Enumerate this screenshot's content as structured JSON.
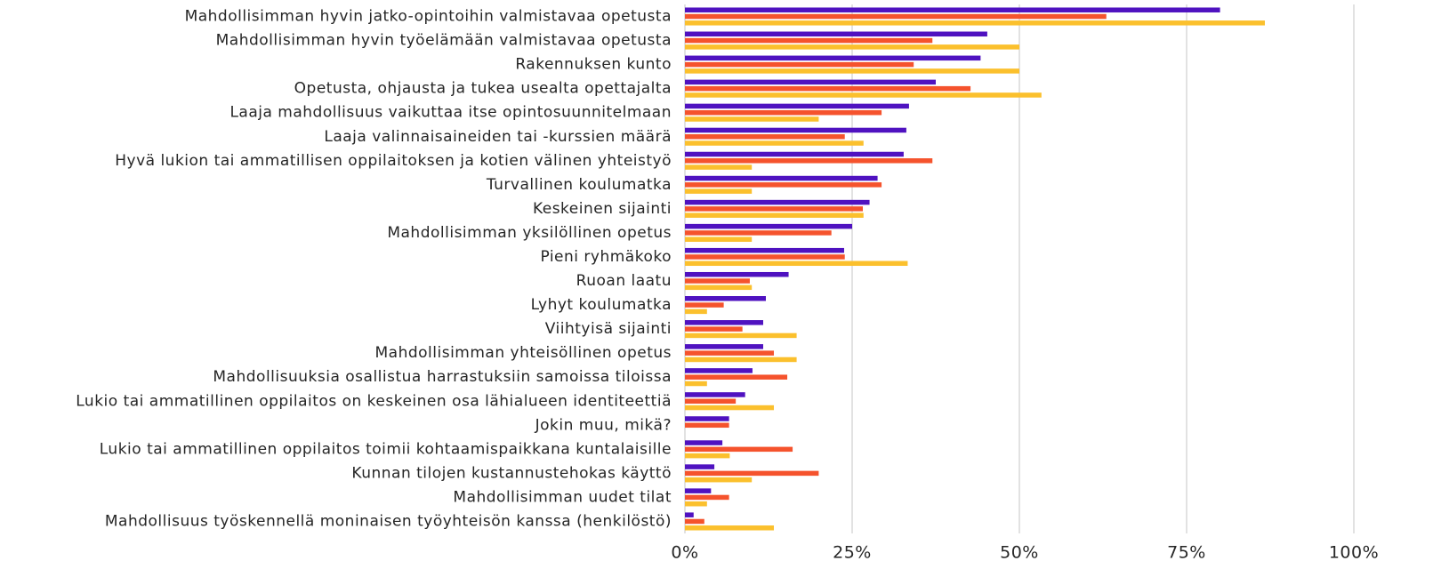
{
  "chart_data": {
    "type": "bar",
    "orientation": "horizontal",
    "categories": [
      "Mahdollisimman hyvin jatko-opintoihin valmistavaa opetusta",
      "Mahdollisimman hyvin työelämään valmistavaa opetusta",
      "Rakennuksen kunto",
      "Opetusta, ohjausta ja tukea usealta opettajalta",
      "Laaja mahdollisuus vaikuttaa itse opintosuunnitelmaan",
      "Laaja valinnaisaineiden tai -kurssien määrä",
      "Hyvä lukion tai ammatillisen oppilaitoksen ja kotien välinen yhteistyö",
      "Turvallinen koulumatka",
      "Keskeinen sijainti",
      "Mahdollisimman yksilöllinen opetus",
      "Pieni ryhmäkoko",
      "Ruoan laatu",
      "Lyhyt koulumatka",
      "Viihtyisä sijainti",
      "Mahdollisimman yhteisöllinen opetus",
      "Mahdollisuuksia osallistua harrastuksiin samoissa tiloissa",
      "Lukio tai ammatillinen oppilaitos on keskeinen osa lähialueen identiteettiä",
      "Jokin muu, mikä?",
      "Lukio tai ammatillinen oppilaitos toimii kohtaamispaikkana kuntalaisille",
      "Kunnan tilojen kustannustehokas käyttö",
      "Mahdollisimman uudet tilat",
      "Mahdollisuus työskennellä moninaisen työyhteisön kanssa (henkilöstö)"
    ],
    "series": [
      {
        "color": "#4f12c0",
        "values": [
          80,
          45.2,
          44.2,
          37.5,
          33.5,
          33.1,
          32.7,
          28.8,
          27.6,
          25,
          23.8,
          15.5,
          12.1,
          11.7,
          11.7,
          10.1,
          9,
          6.6,
          5.6,
          4.4,
          3.9,
          1.3
        ]
      },
      {
        "color": "#f5532d",
        "values": [
          63,
          37,
          34.2,
          42.7,
          29.4,
          23.9,
          37,
          29.4,
          26.6,
          21.9,
          23.9,
          9.7,
          5.8,
          8.6,
          13.3,
          15.3,
          7.6,
          6.6,
          16.1,
          20,
          6.6,
          2.9
        ]
      },
      {
        "color": "#fbc02d",
        "values": [
          86.7,
          50,
          50,
          53.3,
          20,
          26.7,
          10,
          10,
          26.7,
          10,
          33.3,
          10,
          3.3,
          16.7,
          16.7,
          3.3,
          13.3,
          0,
          6.7,
          10,
          3.3,
          13.3
        ]
      }
    ],
    "xlim": [
      0,
      100
    ],
    "xticks": [
      {
        "value": 0,
        "label": "0%"
      },
      {
        "value": 25,
        "label": "25%"
      },
      {
        "value": 50,
        "label": "50%"
      },
      {
        "value": 75,
        "label": "75%"
      },
      {
        "value": 100,
        "label": "100%"
      }
    ],
    "grid": true
  }
}
